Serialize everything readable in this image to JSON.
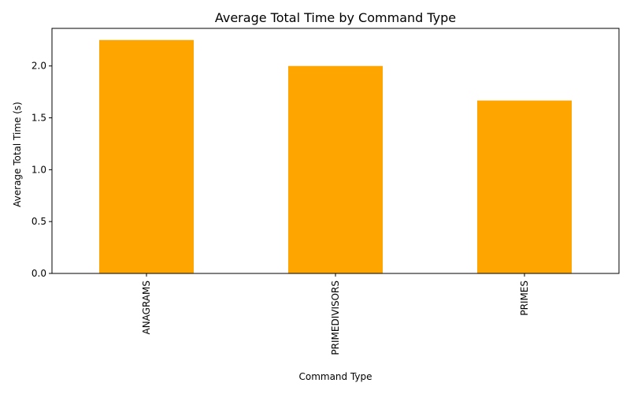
{
  "chart_data": {
    "type": "bar",
    "title": "Average Total Time by Command Type",
    "xlabel": "Command Type",
    "ylabel": "Average Total Time (s)",
    "categories": [
      "ANAGRAMS",
      "PRIMEDIVISORS",
      "PRIMES"
    ],
    "values": [
      2.25,
      2.0,
      1.667
    ],
    "ylim": [
      0,
      2.3625
    ],
    "yticks": [
      0.0,
      0.5,
      1.0,
      1.5,
      2.0
    ],
    "ytick_labels": [
      "0.0",
      "0.5",
      "1.0",
      "1.5",
      "2.0"
    ],
    "xtick_rotation": "vertical",
    "grid": false,
    "legend": "none",
    "bar_color": "#ffa500"
  }
}
